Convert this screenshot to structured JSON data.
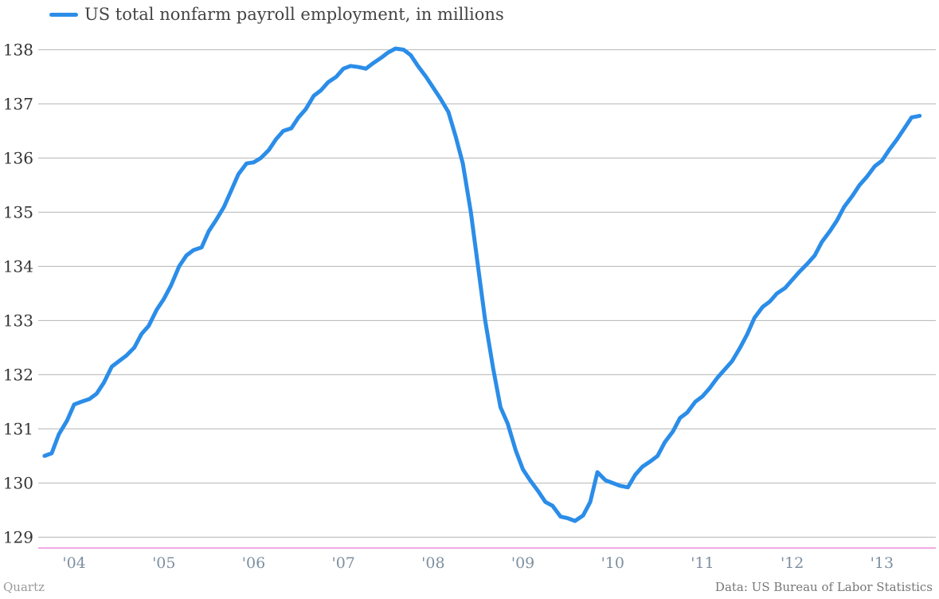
{
  "footer": {
    "source_left": "Quartz",
    "source_right": "Data: US Bureau of Labor Statistics"
  },
  "colors": {
    "series": "#2b8de8",
    "grid": "#b5b5b5",
    "baseline": "#e879d8",
    "tick_x": "#7d8fa0",
    "tick_y": "#333333"
  },
  "chart_data": {
    "type": "line",
    "xlabel": "",
    "ylabel": "",
    "xlim": [
      2003.6,
      2013.6
    ],
    "ylim": [
      128.8,
      138.3
    ],
    "grid": true,
    "legend_position": "top-left",
    "y_ticks": [
      129,
      130,
      131,
      132,
      133,
      134,
      135,
      136,
      137,
      138
    ],
    "x_ticks": [
      {
        "value": 2004,
        "label": "'04"
      },
      {
        "value": 2005,
        "label": "'05"
      },
      {
        "value": 2006,
        "label": "'06"
      },
      {
        "value": 2007,
        "label": "'07"
      },
      {
        "value": 2008,
        "label": "'08"
      },
      {
        "value": 2009,
        "label": "'09"
      },
      {
        "value": 2010,
        "label": "'10"
      },
      {
        "value": 2011,
        "label": "'11"
      },
      {
        "value": 2012,
        "label": "'12"
      },
      {
        "value": 2013,
        "label": "'13"
      }
    ],
    "series": [
      {
        "name": "US total nonfarm payroll employment, in millions",
        "color": "#2b8de8",
        "x": [
          2003.67,
          2003.75,
          2003.83,
          2003.92,
          2004.0,
          2004.08,
          2004.17,
          2004.25,
          2004.33,
          2004.42,
          2004.5,
          2004.58,
          2004.67,
          2004.75,
          2004.83,
          2004.92,
          2005.0,
          2005.08,
          2005.17,
          2005.25,
          2005.33,
          2005.42,
          2005.5,
          2005.58,
          2005.67,
          2005.75,
          2005.83,
          2005.92,
          2006.0,
          2006.08,
          2006.17,
          2006.25,
          2006.33,
          2006.42,
          2006.5,
          2006.58,
          2006.67,
          2006.75,
          2006.83,
          2006.92,
          2007.0,
          2007.08,
          2007.17,
          2007.25,
          2007.33,
          2007.42,
          2007.5,
          2007.58,
          2007.67,
          2007.75,
          2007.83,
          2007.92,
          2008.0,
          2008.08,
          2008.17,
          2008.25,
          2008.33,
          2008.42,
          2008.5,
          2008.58,
          2008.67,
          2008.75,
          2008.83,
          2008.92,
          2009.0,
          2009.08,
          2009.17,
          2009.25,
          2009.33,
          2009.42,
          2009.5,
          2009.58,
          2009.67,
          2009.75,
          2009.83,
          2009.92,
          2010.0,
          2010.08,
          2010.17,
          2010.25,
          2010.33,
          2010.42,
          2010.5,
          2010.58,
          2010.67,
          2010.75,
          2010.83,
          2010.92,
          2011.0,
          2011.08,
          2011.17,
          2011.25,
          2011.33,
          2011.42,
          2011.5,
          2011.58,
          2011.67,
          2011.75,
          2011.83,
          2011.92,
          2012.0,
          2012.08,
          2012.17,
          2012.25,
          2012.33,
          2012.42,
          2012.5,
          2012.58,
          2012.67,
          2012.75,
          2012.83,
          2012.92,
          2013.0,
          2013.08,
          2013.17,
          2013.25,
          2013.33,
          2013.42
        ],
        "y": [
          130.5,
          130.55,
          130.9,
          131.15,
          131.45,
          131.5,
          131.55,
          131.65,
          131.85,
          132.15,
          132.25,
          132.35,
          132.5,
          132.75,
          132.9,
          133.2,
          133.4,
          133.65,
          134.0,
          134.2,
          134.3,
          134.35,
          134.65,
          134.85,
          135.1,
          135.4,
          135.7,
          135.9,
          135.92,
          136.0,
          136.15,
          136.35,
          136.5,
          136.55,
          136.75,
          136.9,
          137.15,
          137.25,
          137.4,
          137.5,
          137.65,
          137.7,
          137.68,
          137.65,
          137.75,
          137.85,
          137.95,
          138.02,
          138.0,
          137.9,
          137.7,
          137.5,
          137.3,
          137.1,
          136.85,
          136.4,
          135.9,
          135.0,
          134.0,
          133.0,
          132.1,
          131.4,
          131.1,
          130.6,
          130.25,
          130.05,
          129.85,
          129.65,
          129.58,
          129.38,
          129.35,
          129.3,
          129.4,
          129.65,
          130.2,
          130.05,
          130.0,
          129.95,
          129.92,
          130.15,
          130.3,
          130.4,
          130.5,
          130.75,
          130.95,
          131.2,
          131.3,
          131.5,
          131.6,
          131.75,
          131.95,
          132.1,
          132.25,
          132.5,
          132.75,
          133.05,
          133.25,
          133.35,
          133.5,
          133.6,
          133.75,
          133.9,
          134.05,
          134.2,
          134.45,
          134.65,
          134.85,
          135.1,
          135.3,
          135.5,
          135.65,
          135.85,
          135.95,
          136.15,
          136.35,
          136.55,
          136.75,
          136.78
        ]
      }
    ]
  }
}
